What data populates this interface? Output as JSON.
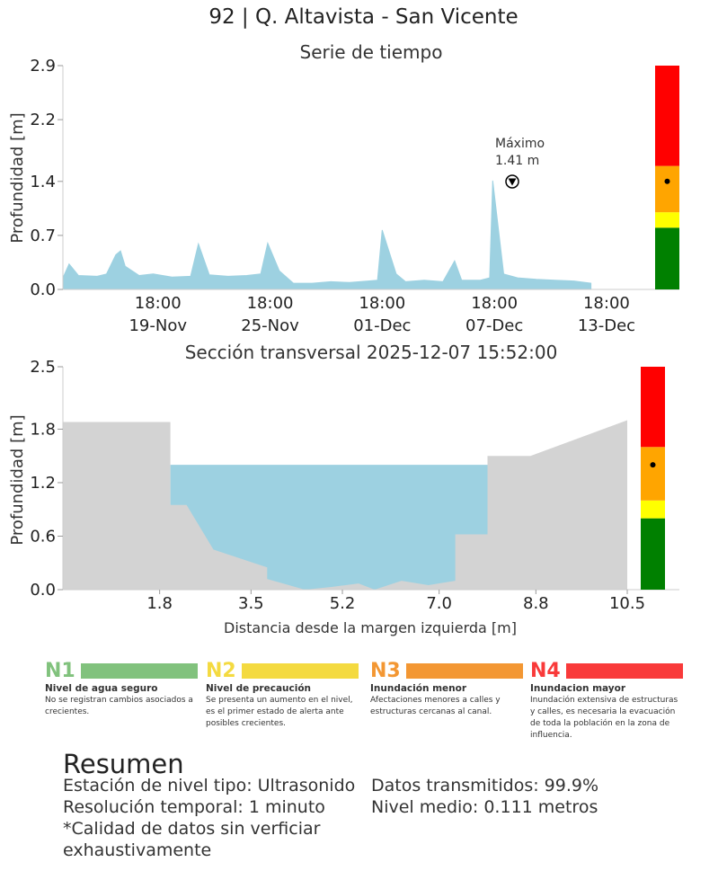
{
  "title": "92 | Q. Altavista - San Vicente",
  "colors": {
    "series": "#9dd1e1",
    "ground": "#d3d3d3",
    "n1": "#008000",
    "n2": "#ffff00",
    "n3": "#ffa500",
    "n4": "#ff0000"
  },
  "chart_data": [
    {
      "type": "area",
      "title": "Serie de tiempo",
      "ylabel": "Profundidad [m]",
      "xlabel": "",
      "ylim": [
        0.0,
        2.9
      ],
      "yticks": [
        "0.0",
        "0.7",
        "1.4",
        "2.2",
        "2.9"
      ],
      "xticks": [
        {
          "time": "18:00",
          "date": "19-Nov"
        },
        {
          "time": "18:00",
          "date": "25-Nov"
        },
        {
          "time": "18:00",
          "date": "01-Dec"
        },
        {
          "time": "18:00",
          "date": "07-Dec"
        },
        {
          "time": "18:00",
          "date": "13-Dec"
        }
      ],
      "series": [
        {
          "x": [
            "2025-11-14 16:00",
            "2025-11-15 00:00",
            "2025-11-15 12:00",
            "2025-11-16 12:00",
            "2025-11-17 00:00",
            "2025-11-17 12:00",
            "2025-11-17 18:00",
            "2025-11-18 00:00",
            "2025-11-18 18:00",
            "2025-11-19 12:00",
            "2025-11-20 12:00",
            "2025-11-21 12:00",
            "2025-11-21 22:00",
            "2025-11-22 12:00",
            "2025-11-23 12:00",
            "2025-11-24 12:00",
            "2025-11-25 06:00",
            "2025-11-25 15:00",
            "2025-11-26 06:00",
            "2025-11-27 00:00",
            "2025-11-28 00:00",
            "2025-11-29 00:00",
            "2025-11-30 00:00",
            "2025-12-01 00:00",
            "2025-12-01 12:00",
            "2025-12-01 18:00",
            "2025-12-02 12:00",
            "2025-12-03 00:00",
            "2025-12-04 00:00",
            "2025-12-05 00:00",
            "2025-12-05 15:00",
            "2025-12-06 00:00",
            "2025-12-07 00:00",
            "2025-12-07 12:00",
            "2025-12-07 15:52",
            "2025-12-08 06:00",
            "2025-12-09 00:00",
            "2025-12-10 00:00",
            "2025-12-11 00:00",
            "2025-12-12 00:00",
            "2025-12-12 22:00"
          ],
          "values": [
            0.15,
            0.33,
            0.18,
            0.17,
            0.2,
            0.45,
            0.5,
            0.3,
            0.18,
            0.2,
            0.16,
            0.17,
            0.59,
            0.19,
            0.17,
            0.18,
            0.2,
            0.6,
            0.24,
            0.08,
            0.08,
            0.1,
            0.09,
            0.11,
            0.12,
            0.77,
            0.2,
            0.1,
            0.12,
            0.1,
            0.37,
            0.12,
            0.12,
            0.15,
            1.41,
            0.2,
            0.15,
            0.13,
            0.12,
            0.11,
            0.08
          ]
        }
      ],
      "maximum": {
        "label": "Máximo",
        "value": "1.41 m"
      },
      "level_thresholds": [
        0.0,
        0.8,
        1.0,
        1.6,
        2.9
      ],
      "current_level": 1.4
    },
    {
      "type": "area",
      "title": "Sección transversal 2025-12-07 15:52:00",
      "xlabel": "Distancia desde la margen izquierda [m]",
      "ylabel": "Profundidad [m]",
      "xlim": [
        0.0,
        10.5
      ],
      "ylim": [
        0.0,
        2.5
      ],
      "xticks": [
        "1.8",
        "3.5",
        "5.2",
        "7.0",
        "8.8",
        "10.5"
      ],
      "yticks": [
        "0.0",
        "0.6",
        "1.2",
        "1.8",
        "2.5"
      ],
      "water_level": 1.4,
      "ground_profile": {
        "x": [
          0.0,
          2.0,
          2.0,
          2.3,
          2.8,
          3.8,
          3.8,
          4.5,
          5.0,
          5.5,
          5.8,
          6.3,
          6.8,
          7.3,
          7.3,
          7.9,
          7.9,
          8.7,
          10.5
        ],
        "y": [
          1.88,
          1.88,
          0.95,
          0.95,
          0.45,
          0.25,
          0.12,
          0.0,
          0.03,
          0.07,
          0.0,
          0.1,
          0.05,
          0.1,
          0.62,
          0.62,
          1.5,
          1.5,
          1.9
        ]
      },
      "level_thresholds": [
        0.0,
        0.8,
        1.0,
        1.6,
        2.5
      ],
      "current_level": 1.4
    }
  ],
  "legend": [
    {
      "code": "N1",
      "name": "Nivel de agua seguro",
      "desc": "No se registran cambios asociados a crecientes.",
      "color": "#81c27d"
    },
    {
      "code": "N2",
      "name": "Nivel de precaución",
      "desc": "Se presenta un aumento en el nivel, es el primer estado de alerta ante posibles crecientes.",
      "color": "#f4da40"
    },
    {
      "code": "N3",
      "name": "Inundación menor",
      "desc": "Afectaciones menores a calles y estructuras cercanas al canal.",
      "color": "#f39733"
    },
    {
      "code": "N4",
      "name": "Inundacion mayor",
      "desc": "Inundación extensiva de estructuras y calles, es necesaria la evacuación de toda la población en la zona de influencia.",
      "color": "#f93a3a"
    }
  ],
  "summary": {
    "title": "Resumen",
    "left": [
      "Estación de nivel tipo: Ultrasonido",
      "Resolución temporal: 1 minuto",
      "*Calidad de datos sin verficiar",
      "exhaustivamente"
    ],
    "right": [
      "Datos transmitidos: 99.9%",
      "Nivel medio: 0.111 metros"
    ]
  }
}
